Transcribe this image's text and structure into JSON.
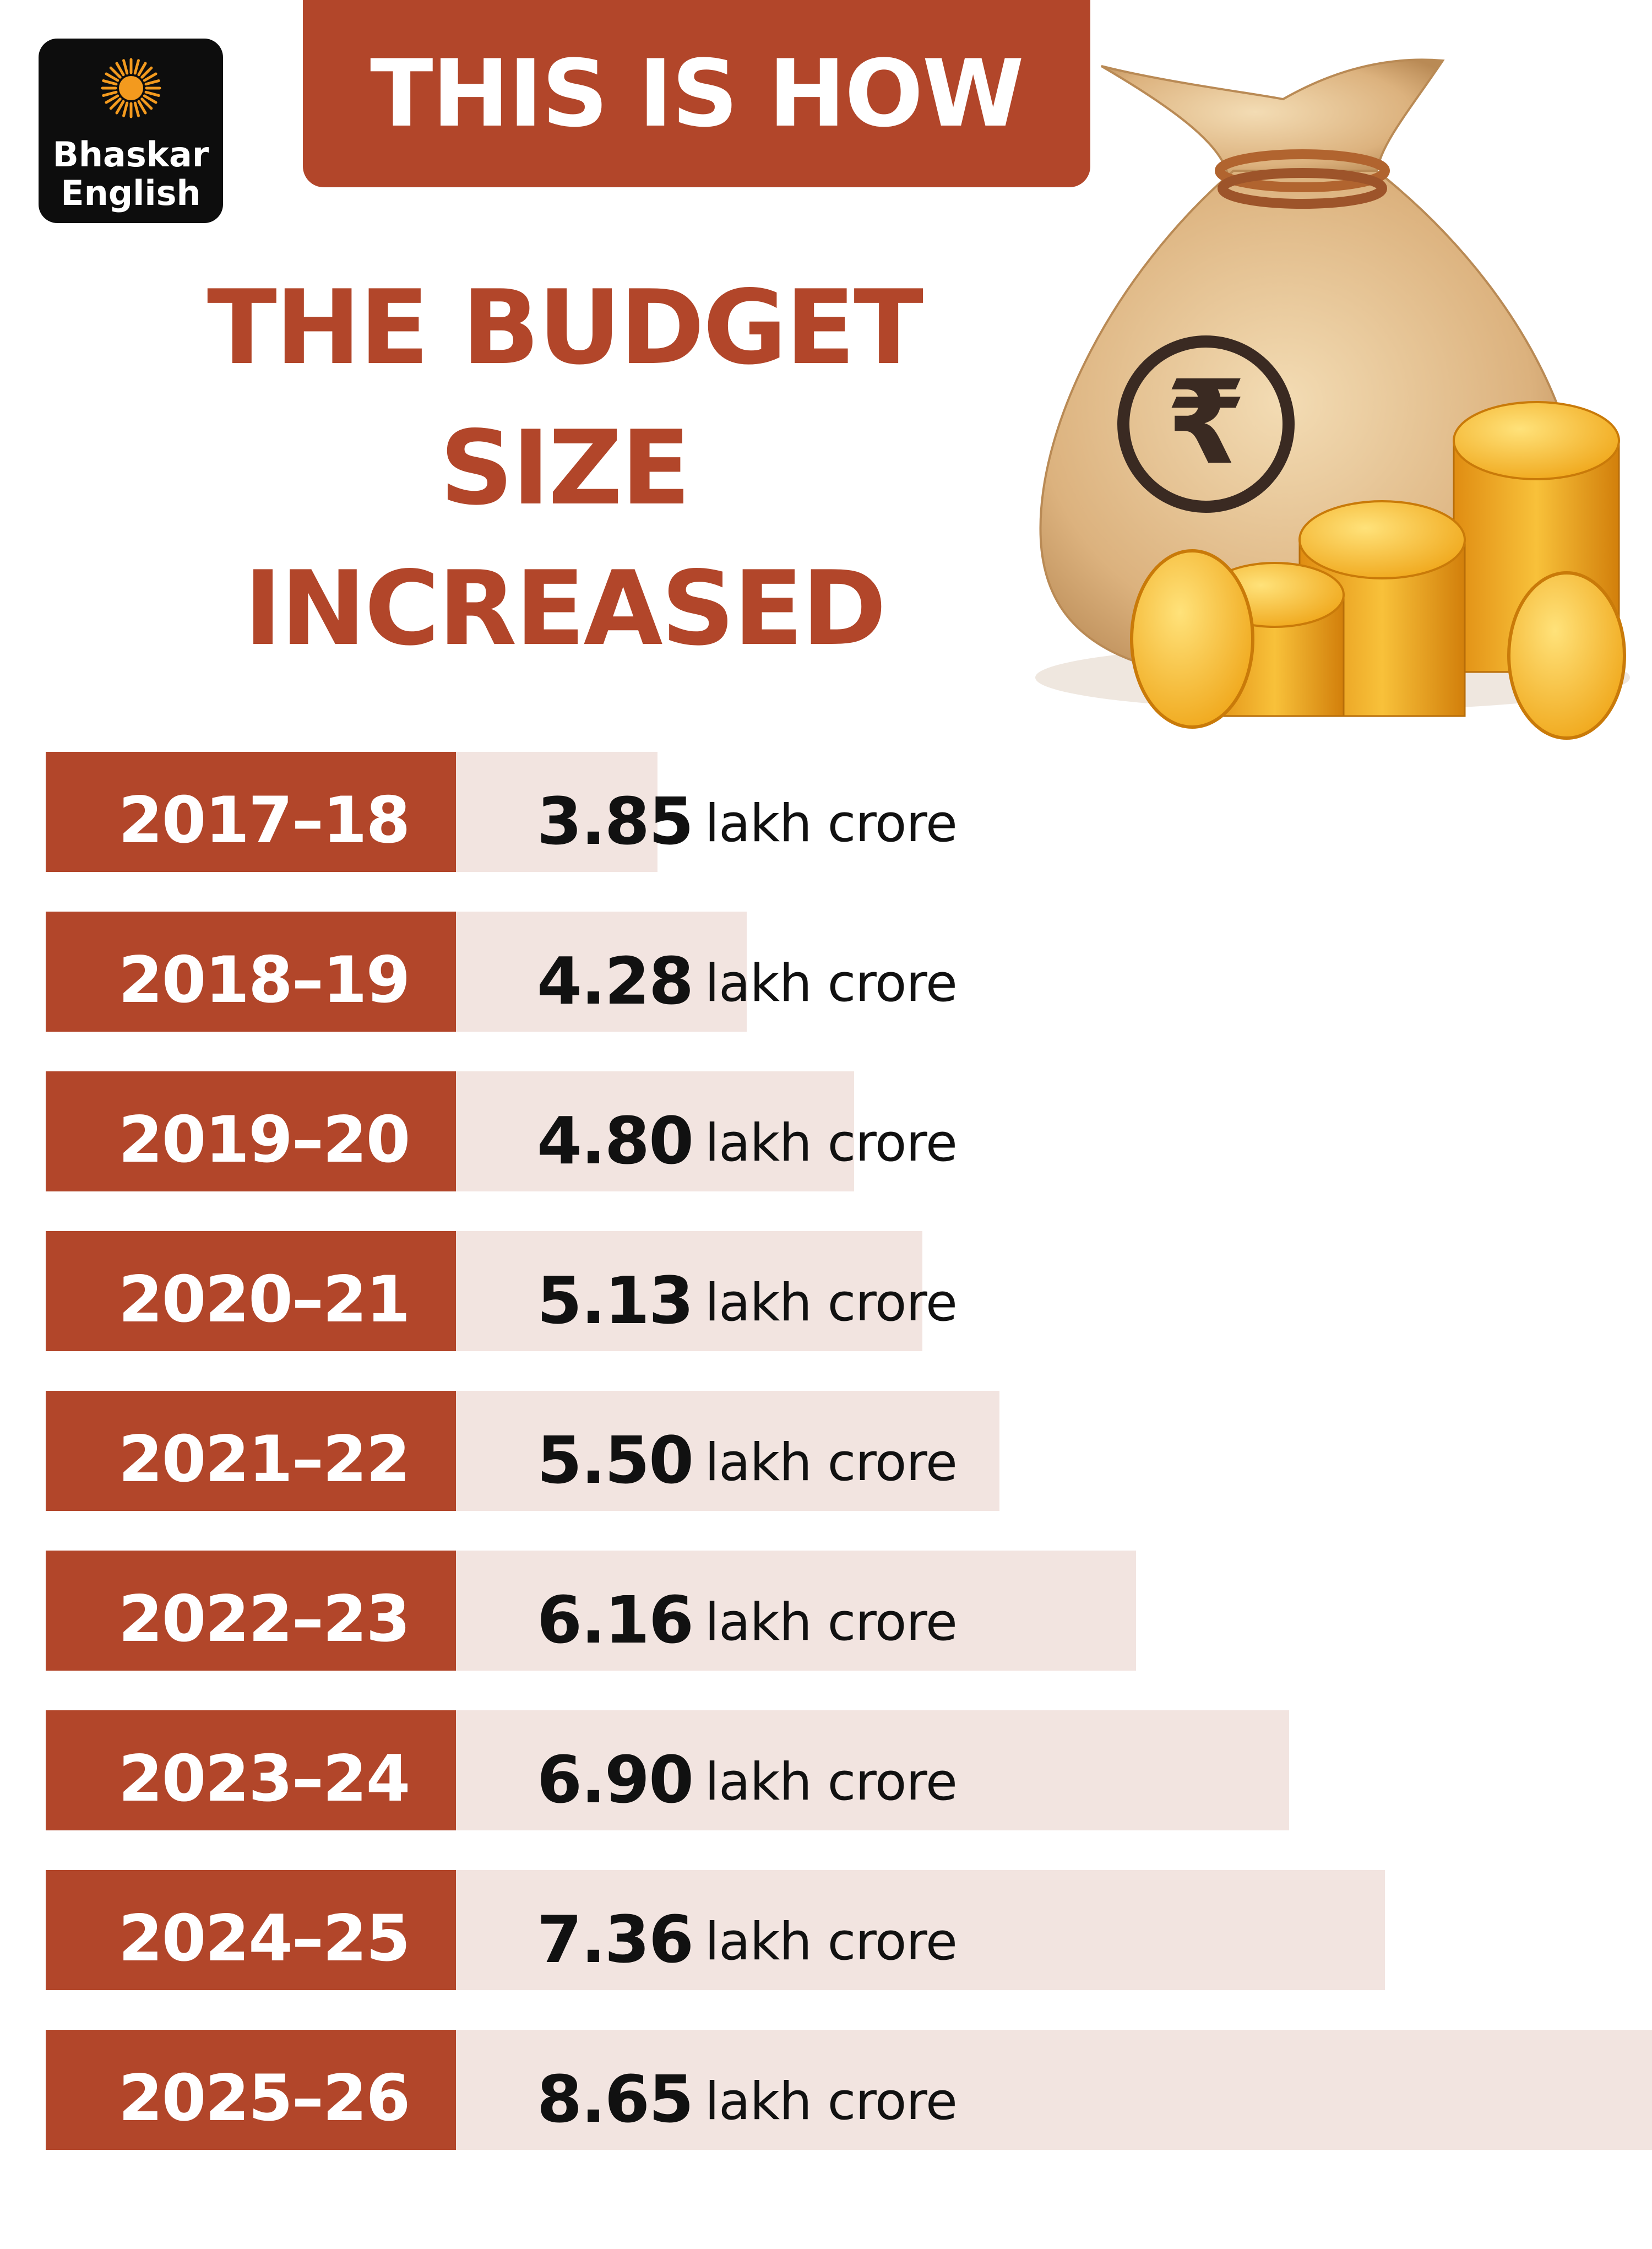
{
  "brand": {
    "line1": "Bhaskar",
    "line2": "English"
  },
  "header": {
    "text": "THIS IS HOW"
  },
  "title": {
    "line1": "THE BUDGET",
    "line2": "SIZE",
    "line3": "INCREASED"
  },
  "illustration": {
    "symbol": "₹",
    "icon": "money-bag-with-coins"
  },
  "colors": {
    "accent": "#b2462a",
    "bar_fill": "#f2e4e0",
    "text_dark": "#111111"
  },
  "chart_data": {
    "type": "bar",
    "orientation": "horizontal",
    "title": "THIS IS HOW THE BUDGET SIZE INCREASED",
    "unit": "lakh crore",
    "categories": [
      "2017–18",
      "2018–19",
      "2019–20",
      "2020–21",
      "2021–22",
      "2022–23",
      "2023–24",
      "2024–25",
      "2025–26"
    ],
    "values": [
      3.85,
      4.28,
      4.8,
      5.13,
      5.5,
      6.16,
      6.9,
      7.36,
      8.65
    ],
    "value_labels": [
      "3.85",
      "4.28",
      "4.80",
      "5.13",
      "5.50",
      "6.16",
      "6.90",
      "7.36",
      "8.65"
    ],
    "xlim": [
      0,
      8.65
    ]
  }
}
